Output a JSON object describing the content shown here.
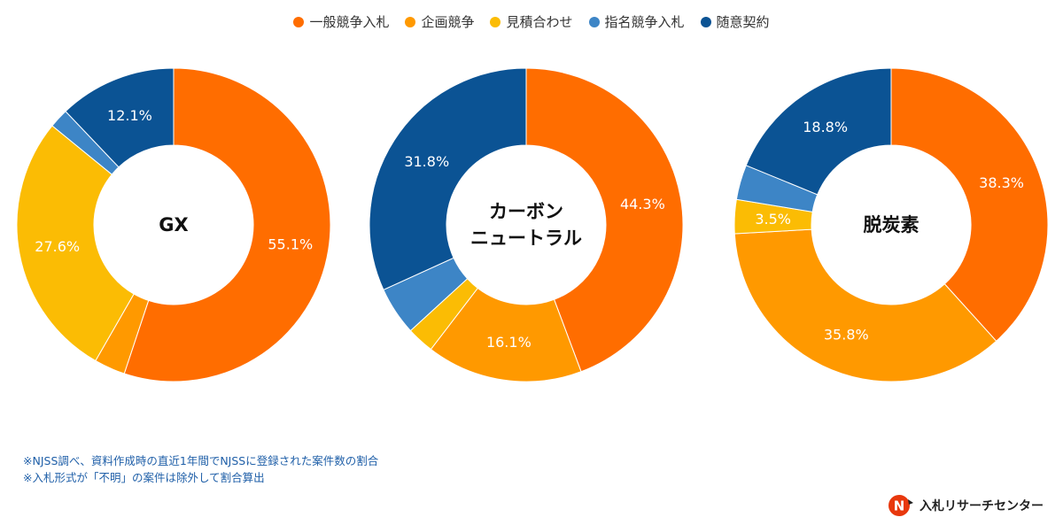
{
  "legend": {
    "items": [
      {
        "label": "一般競争入札",
        "color": "#ff6d00"
      },
      {
        "label": "企画競争",
        "color": "#ff9900"
      },
      {
        "label": "見積合わせ",
        "color": "#fbbc04"
      },
      {
        "label": "指名競争入札",
        "color": "#3d85c6"
      },
      {
        "label": "随意契約",
        "color": "#0b5394"
      }
    ]
  },
  "chart_data": [
    {
      "type": "pie",
      "variant": "donut",
      "center_label": [
        "GX"
      ],
      "slices": [
        {
          "category": "一般競争入札",
          "value": 55.1,
          "label": "55.1%"
        },
        {
          "category": "企画競争",
          "value": 3.2,
          "label": ""
        },
        {
          "category": "見積合わせ",
          "value": 27.6,
          "label": "27.6%"
        },
        {
          "category": "指名競争入札",
          "value": 2.0,
          "label": ""
        },
        {
          "category": "随意契約",
          "value": 12.1,
          "label": "12.1%"
        }
      ]
    },
    {
      "type": "pie",
      "variant": "donut",
      "center_label": [
        "カーボン",
        "ニュートラル"
      ],
      "slices": [
        {
          "category": "一般競争入札",
          "value": 44.3,
          "label": "44.3%"
        },
        {
          "category": "企画競争",
          "value": 16.1,
          "label": "16.1%"
        },
        {
          "category": "見積合わせ",
          "value": 2.8,
          "label": ""
        },
        {
          "category": "指名競争入札",
          "value": 5.0,
          "label": ""
        },
        {
          "category": "随意契約",
          "value": 31.8,
          "label": "31.8%"
        }
      ]
    },
    {
      "type": "pie",
      "variant": "donut",
      "center_label": [
        "脱炭素"
      ],
      "slices": [
        {
          "category": "一般競争入札",
          "value": 38.3,
          "label": "38.3%"
        },
        {
          "category": "企画競争",
          "value": 35.8,
          "label": "35.8%"
        },
        {
          "category": "見積合わせ",
          "value": 3.5,
          "label": "3.5%"
        },
        {
          "category": "指名競争入札",
          "value": 3.6,
          "label": ""
        },
        {
          "category": "随意契約",
          "value": 18.8,
          "label": "18.8%"
        }
      ]
    }
  ],
  "notes": [
    "※NJSS調べ、資料作成時の直近1年間でNJSSに登録された案件数の割合",
    "※入札形式が「不明」の案件は除外して割合算出"
  ],
  "brand": {
    "name": "入札リサーチセンター",
    "mark_letter": "N",
    "mark_color": "#e8380d"
  }
}
